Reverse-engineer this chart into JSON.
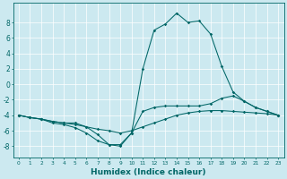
{
  "xlabel": "Humidex (Indice chaleur)",
  "bg_color": "#cce9f0",
  "line_color": "#006666",
  "xlim": [
    -0.5,
    23.5
  ],
  "ylim": [
    -9.5,
    10.5
  ],
  "yticks": [
    -8,
    -6,
    -4,
    -2,
    0,
    2,
    4,
    6,
    8
  ],
  "xticks": [
    0,
    1,
    2,
    3,
    4,
    5,
    6,
    7,
    8,
    9,
    10,
    11,
    12,
    13,
    14,
    15,
    16,
    17,
    18,
    19,
    20,
    21,
    22,
    23
  ],
  "line1_x": [
    0,
    1,
    2,
    3,
    4,
    5,
    6,
    7,
    8,
    9,
    10,
    11,
    12,
    13,
    14,
    15,
    16,
    17,
    18,
    19,
    20,
    21,
    22,
    23
  ],
  "line1_y": [
    -4.0,
    -4.3,
    -4.5,
    -4.8,
    -5.0,
    -5.2,
    -5.5,
    -5.8,
    -6.0,
    -6.3,
    -6.0,
    -5.5,
    -5.0,
    -4.5,
    -4.0,
    -3.7,
    -3.5,
    -3.4,
    -3.4,
    -3.5,
    -3.6,
    -3.7,
    -3.8,
    -4.0
  ],
  "line2_x": [
    0,
    1,
    2,
    3,
    4,
    5,
    6,
    7,
    8,
    9,
    10,
    11,
    12,
    13,
    14,
    15,
    16,
    17,
    18,
    19,
    20,
    21,
    22,
    23
  ],
  "line2_y": [
    -4.0,
    -4.3,
    -4.5,
    -5.0,
    -5.2,
    -5.6,
    -6.3,
    -7.3,
    -7.8,
    -8.0,
    -6.3,
    2.0,
    7.0,
    7.8,
    9.2,
    8.0,
    8.2,
    6.5,
    2.3,
    -1.0,
    -2.2,
    -3.0,
    -3.5,
    -4.0
  ],
  "line3_x": [
    0,
    1,
    2,
    3,
    4,
    5,
    6,
    7,
    8,
    9,
    10,
    11,
    12,
    13,
    14,
    15,
    16,
    17,
    18,
    19,
    20,
    21,
    22,
    23
  ],
  "line3_y": [
    -4.0,
    -4.3,
    -4.5,
    -4.8,
    -5.0,
    -5.0,
    -5.5,
    -6.5,
    -7.8,
    -7.8,
    -6.3,
    -3.5,
    -3.0,
    -2.8,
    -2.8,
    -2.8,
    -2.8,
    -2.5,
    -1.8,
    -1.5,
    -2.2,
    -3.0,
    -3.5,
    -4.0
  ]
}
